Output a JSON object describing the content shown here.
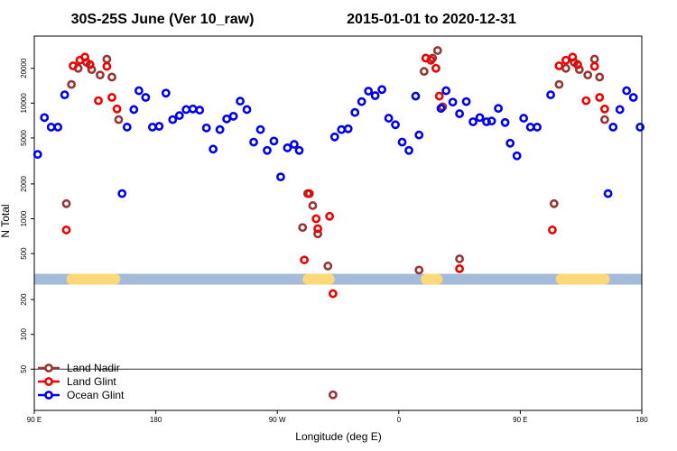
{
  "chart_data": {
    "type": "scatter",
    "title_left": "30S-25S June (Ver 10_raw)",
    "title_right": "2015-01-01 to 2020-12-31",
    "xlabel": "Longitude (deg E)",
    "ylabel": "N Total",
    "x_axis": {
      "range": [
        0,
        360
      ],
      "ticks": [
        {
          "value": 0,
          "label": "90 E"
        },
        {
          "value": 72,
          "label": "180"
        },
        {
          "value": 144,
          "label": "90 W"
        },
        {
          "value": 216,
          "label": "0"
        },
        {
          "value": 288,
          "label": "90 E"
        },
        {
          "value": 360,
          "label": "180"
        }
      ]
    },
    "y_axis": {
      "scale": "log",
      "range": [
        22,
        38000
      ],
      "ticks": [
        {
          "value": 50,
          "label": "50"
        },
        {
          "value": 100,
          "label": "100"
        },
        {
          "value": 200,
          "label": "200"
        },
        {
          "value": 500,
          "label": "500"
        },
        {
          "value": 1000,
          "label": "1000"
        },
        {
          "value": 2000,
          "label": "2000"
        },
        {
          "value": 5000,
          "label": "5000"
        },
        {
          "value": 10000,
          "label": "10000"
        },
        {
          "value": 20000,
          "label": "20000"
        }
      ]
    },
    "reference_line_y": 50,
    "land_band": {
      "y": 300,
      "color_ocean": "#a3bbd9",
      "color_land": "#fcd978",
      "land_segments": [
        [
          19,
          51
        ],
        [
          159,
          178
        ],
        [
          229,
          242
        ],
        [
          309,
          341
        ]
      ]
    },
    "legend": [
      {
        "name": "Land Nadir",
        "color": "#983434"
      },
      {
        "name": "Land Glint",
        "color": "#ee0000"
      },
      {
        "name": "Ocean Glint",
        "color": "#0000ee"
      }
    ],
    "series": [
      {
        "name": "Land Nadir",
        "color": "#983434",
        "points": [
          {
            "x": 19,
            "y": 1350
          },
          {
            "x": 22,
            "y": 14500
          },
          {
            "x": 26,
            "y": 20000
          },
          {
            "x": 31,
            "y": 22500
          },
          {
            "x": 34,
            "y": 19500
          },
          {
            "x": 39,
            "y": 17500
          },
          {
            "x": 43,
            "y": 24000
          },
          {
            "x": 46,
            "y": 16800
          },
          {
            "x": 50,
            "y": 7200
          },
          {
            "x": 159,
            "y": 840
          },
          {
            "x": 162,
            "y": 1650
          },
          {
            "x": 165,
            "y": 1300
          },
          {
            "x": 168,
            "y": 740
          },
          {
            "x": 174,
            "y": 390
          },
          {
            "x": 177,
            "y": 30
          },
          {
            "x": 228,
            "y": 360
          },
          {
            "x": 231,
            "y": 18800
          },
          {
            "x": 236,
            "y": 24500
          },
          {
            "x": 239,
            "y": 28500
          },
          {
            "x": 242,
            "y": 9300
          },
          {
            "x": 252,
            "y": 450
          },
          {
            "x": 308,
            "y": 1350
          },
          {
            "x": 311,
            "y": 14500
          },
          {
            "x": 315,
            "y": 20000
          },
          {
            "x": 320,
            "y": 22500
          },
          {
            "x": 323,
            "y": 19500
          },
          {
            "x": 328,
            "y": 17500
          },
          {
            "x": 332,
            "y": 24000
          },
          {
            "x": 335,
            "y": 16800
          },
          {
            "x": 338,
            "y": 7200
          }
        ]
      },
      {
        "name": "Land Glint",
        "color": "#ee0000",
        "points": [
          {
            "x": 19,
            "y": 800
          },
          {
            "x": 23,
            "y": 21000
          },
          {
            "x": 27,
            "y": 23500
          },
          {
            "x": 30,
            "y": 25000
          },
          {
            "x": 33,
            "y": 21500
          },
          {
            "x": 38,
            "y": 10500
          },
          {
            "x": 43,
            "y": 20800
          },
          {
            "x": 46,
            "y": 11200
          },
          {
            "x": 49,
            "y": 8900
          },
          {
            "x": 160,
            "y": 440
          },
          {
            "x": 163,
            "y": 1650
          },
          {
            "x": 167,
            "y": 1000
          },
          {
            "x": 168,
            "y": 820
          },
          {
            "x": 175,
            "y": 1050
          },
          {
            "x": 177,
            "y": 225
          },
          {
            "x": 232,
            "y": 24500
          },
          {
            "x": 235,
            "y": 23500
          },
          {
            "x": 238,
            "y": 20000
          },
          {
            "x": 240,
            "y": 11500
          },
          {
            "x": 252,
            "y": 370
          },
          {
            "x": 307,
            "y": 800
          },
          {
            "x": 311,
            "y": 21000
          },
          {
            "x": 315,
            "y": 23500
          },
          {
            "x": 319,
            "y": 25000
          },
          {
            "x": 322,
            "y": 21500
          },
          {
            "x": 327,
            "y": 10500
          },
          {
            "x": 332,
            "y": 20800
          },
          {
            "x": 335,
            "y": 11200
          },
          {
            "x": 338,
            "y": 8900
          }
        ]
      },
      {
        "name": "Ocean Glint",
        "color": "#0000ee",
        "points": [
          {
            "x": 2,
            "y": 3600
          },
          {
            "x": 6,
            "y": 7500
          },
          {
            "x": 10,
            "y": 6200
          },
          {
            "x": 14,
            "y": 6200
          },
          {
            "x": 18,
            "y": 11800
          },
          {
            "x": 52,
            "y": 1650
          },
          {
            "x": 55,
            "y": 6200
          },
          {
            "x": 59,
            "y": 8800
          },
          {
            "x": 62,
            "y": 12800
          },
          {
            "x": 66,
            "y": 11200
          },
          {
            "x": 70,
            "y": 6200
          },
          {
            "x": 74,
            "y": 6300
          },
          {
            "x": 78,
            "y": 12200
          },
          {
            "x": 82,
            "y": 7200
          },
          {
            "x": 86,
            "y": 7800
          },
          {
            "x": 90,
            "y": 8800
          },
          {
            "x": 94,
            "y": 8900
          },
          {
            "x": 98,
            "y": 8700
          },
          {
            "x": 102,
            "y": 6100
          },
          {
            "x": 106,
            "y": 4000
          },
          {
            "x": 110,
            "y": 5900
          },
          {
            "x": 114,
            "y": 7300
          },
          {
            "x": 118,
            "y": 7700
          },
          {
            "x": 122,
            "y": 10400
          },
          {
            "x": 126,
            "y": 8800
          },
          {
            "x": 130,
            "y": 4600
          },
          {
            "x": 134,
            "y": 5900
          },
          {
            "x": 138,
            "y": 3900
          },
          {
            "x": 142,
            "y": 4700
          },
          {
            "x": 146,
            "y": 2300
          },
          {
            "x": 150,
            "y": 4100
          },
          {
            "x": 154,
            "y": 4400
          },
          {
            "x": 157,
            "y": 3900
          },
          {
            "x": 178,
            "y": 5100
          },
          {
            "x": 182,
            "y": 5900
          },
          {
            "x": 186,
            "y": 6000
          },
          {
            "x": 190,
            "y": 8300
          },
          {
            "x": 194,
            "y": 10300
          },
          {
            "x": 198,
            "y": 12700
          },
          {
            "x": 202,
            "y": 11600
          },
          {
            "x": 206,
            "y": 13100
          },
          {
            "x": 210,
            "y": 7400
          },
          {
            "x": 214,
            "y": 6500
          },
          {
            "x": 218,
            "y": 4600
          },
          {
            "x": 222,
            "y": 3900
          },
          {
            "x": 226,
            "y": 11500
          },
          {
            "x": 228,
            "y": 5300
          },
          {
            "x": 241,
            "y": 9000
          },
          {
            "x": 244,
            "y": 12800
          },
          {
            "x": 248,
            "y": 10200
          },
          {
            "x": 252,
            "y": 8100
          },
          {
            "x": 256,
            "y": 10300
          },
          {
            "x": 260,
            "y": 6900
          },
          {
            "x": 264,
            "y": 7500
          },
          {
            "x": 268,
            "y": 6900
          },
          {
            "x": 271,
            "y": 7000
          },
          {
            "x": 275,
            "y": 9000
          },
          {
            "x": 279,
            "y": 6800
          },
          {
            "x": 282,
            "y": 4500
          },
          {
            "x": 286,
            "y": 3500
          },
          {
            "x": 290,
            "y": 7400
          },
          {
            "x": 294,
            "y": 6200
          },
          {
            "x": 298,
            "y": 6200
          },
          {
            "x": 306,
            "y": 11800
          },
          {
            "x": 340,
            "y": 1650
          },
          {
            "x": 343,
            "y": 6200
          },
          {
            "x": 347,
            "y": 8800
          },
          {
            "x": 351,
            "y": 12800
          },
          {
            "x": 355,
            "y": 11200
          },
          {
            "x": 359,
            "y": 6200
          }
        ]
      }
    ]
  }
}
